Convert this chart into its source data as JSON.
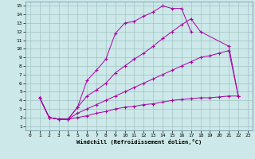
{
  "title": "",
  "xlabel": "Windchill (Refroidissement éolien,°C)",
  "ylabel": "",
  "bg_color": "#cce8e8",
  "line_color": "#aa00aa",
  "xlim": [
    -0.5,
    23.5
  ],
  "ylim": [
    0.5,
    15.5
  ],
  "xticks": [
    0,
    1,
    2,
    3,
    4,
    5,
    6,
    7,
    8,
    9,
    10,
    11,
    12,
    13,
    14,
    15,
    16,
    17,
    18,
    19,
    20,
    21,
    22,
    23
  ],
  "yticks": [
    1,
    2,
    3,
    4,
    5,
    6,
    7,
    8,
    9,
    10,
    11,
    12,
    13,
    14,
    15
  ],
  "lines": [
    {
      "x": [
        1,
        2,
        3,
        4,
        5,
        6,
        7,
        8,
        9,
        10,
        11,
        12,
        13,
        14,
        15,
        16,
        17
      ],
      "y": [
        4.3,
        2.0,
        1.8,
        1.8,
        3.2,
        6.3,
        7.5,
        8.8,
        11.8,
        13.0,
        13.2,
        13.8,
        14.3,
        15.0,
        14.7,
        14.7,
        12.0
      ]
    },
    {
      "x": [
        1,
        2,
        3,
        4,
        5,
        6,
        7,
        8,
        9,
        10,
        11,
        12,
        13,
        14,
        15,
        16,
        17,
        18,
        21,
        22
      ],
      "y": [
        4.3,
        2.0,
        1.8,
        1.8,
        3.2,
        4.5,
        5.2,
        6.0,
        7.2,
        8.0,
        8.8,
        9.5,
        10.3,
        11.2,
        12.0,
        12.8,
        13.5,
        12.0,
        10.3,
        4.5
      ]
    },
    {
      "x": [
        1,
        2,
        3,
        4,
        5,
        6,
        7,
        8,
        9,
        10,
        11,
        12,
        13,
        14,
        15,
        16,
        17,
        18,
        19,
        20,
        21,
        22
      ],
      "y": [
        4.3,
        2.0,
        1.8,
        1.8,
        2.5,
        3.0,
        3.5,
        4.0,
        4.5,
        5.0,
        5.5,
        6.0,
        6.5,
        7.0,
        7.5,
        8.0,
        8.5,
        9.0,
        9.2,
        9.5,
        9.8,
        4.5
      ]
    },
    {
      "x": [
        1,
        2,
        3,
        4,
        5,
        6,
        7,
        8,
        9,
        10,
        11,
        12,
        13,
        14,
        15,
        16,
        17,
        18,
        19,
        20,
        21,
        22
      ],
      "y": [
        4.3,
        2.0,
        1.8,
        1.8,
        2.0,
        2.2,
        2.5,
        2.7,
        3.0,
        3.2,
        3.3,
        3.5,
        3.6,
        3.8,
        4.0,
        4.1,
        4.2,
        4.3,
        4.3,
        4.4,
        4.5,
        4.5
      ]
    }
  ]
}
